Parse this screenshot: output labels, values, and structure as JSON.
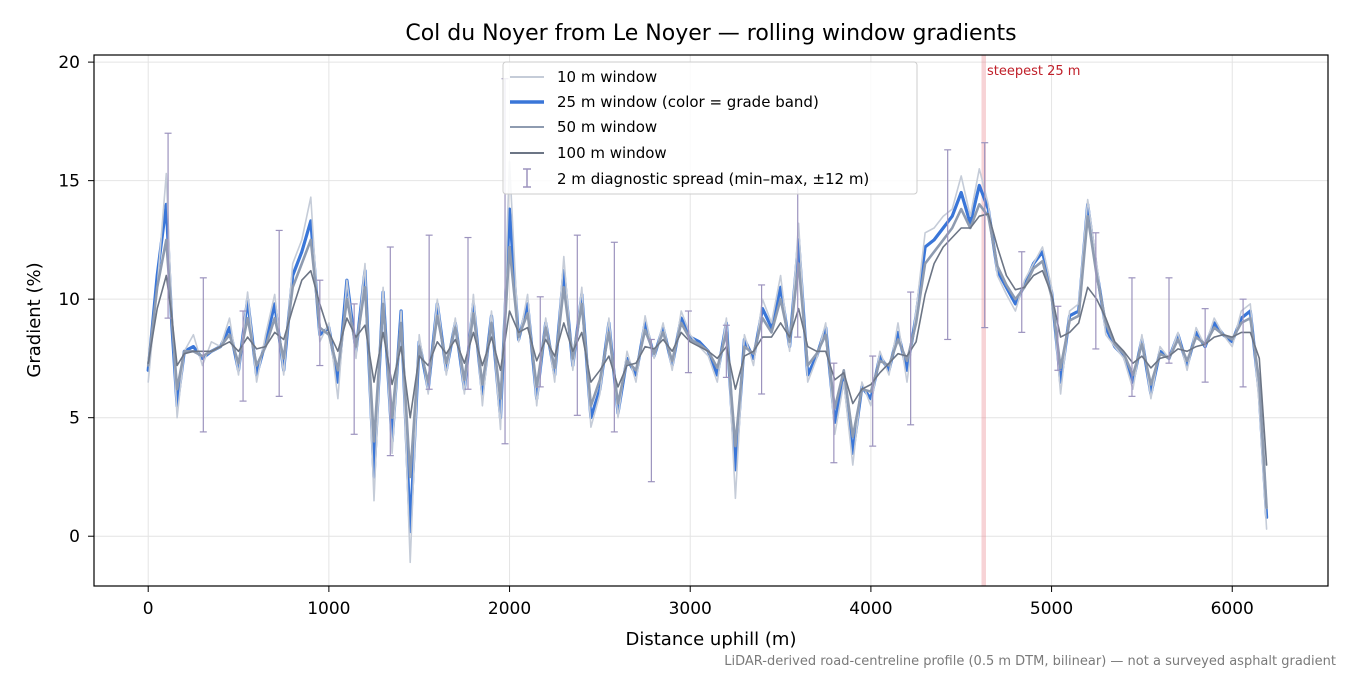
{
  "chart_data": {
    "type": "line",
    "title": "Col du Noyer from Le Noyer — rolling window gradients",
    "xlabel": "Distance uphill (m)",
    "ylabel": "Gradient (%)",
    "xlim": [
      -300,
      6530
    ],
    "ylim": [
      -2.1,
      20.3
    ],
    "x_ticks": [
      0,
      1000,
      2000,
      3000,
      4000,
      5000,
      6000
    ],
    "y_ticks": [
      0,
      5,
      10,
      15,
      20
    ],
    "grid": true,
    "legend_position": "top-center",
    "series": [
      {
        "name": "10 m window",
        "color": "#c5ccd8",
        "x": [
          0,
          50,
          100,
          130,
          160,
          200,
          250,
          300,
          350,
          400,
          450,
          500,
          550,
          600,
          650,
          700,
          750,
          800,
          850,
          900,
          950,
          1000,
          1050,
          1100,
          1150,
          1200,
          1250,
          1300,
          1350,
          1400,
          1450,
          1500,
          1550,
          1600,
          1650,
          1700,
          1750,
          1800,
          1850,
          1900,
          1950,
          2000,
          2050,
          2100,
          2150,
          2200,
          2250,
          2300,
          2350,
          2400,
          2450,
          2500,
          2550,
          2600,
          2650,
          2700,
          2750,
          2800,
          2850,
          2900,
          2950,
          3000,
          3050,
          3100,
          3150,
          3200,
          3250,
          3300,
          3350,
          3400,
          3450,
          3500,
          3550,
          3600,
          3650,
          3700,
          3750,
          3800,
          3850,
          3900,
          3950,
          4000,
          4050,
          4100,
          4150,
          4200,
          4250,
          4300,
          4350,
          4400,
          4450,
          4500,
          4550,
          4600,
          4650,
          4700,
          4750,
          4800,
          4850,
          4900,
          4950,
          5000,
          5050,
          5100,
          5150,
          5200,
          5250,
          5300,
          5350,
          5400,
          5450,
          5500,
          5550,
          5600,
          5650,
          5700,
          5750,
          5800,
          5850,
          5900,
          5950,
          6000,
          6050,
          6100,
          6150,
          6190
        ],
        "y": [
          6.5,
          10.5,
          15.3,
          9.5,
          5.0,
          7.8,
          8.5,
          7.2,
          8.2,
          8.0,
          9.2,
          6.8,
          10.3,
          6.5,
          8.5,
          10.2,
          6.8,
          11.5,
          12.5,
          14.3,
          8.2,
          9.0,
          5.8,
          10.8,
          7.5,
          11.5,
          1.5,
          10.5,
          3.5,
          9.5,
          -1.1,
          8.5,
          6.0,
          10.0,
          6.8,
          9.2,
          6.0,
          10.2,
          5.5,
          9.5,
          4.5,
          15.8,
          8.2,
          10.2,
          5.5,
          9.2,
          6.5,
          11.8,
          7.0,
          10.5,
          4.6,
          6.0,
          9.2,
          5.0,
          7.8,
          6.5,
          9.3,
          7.5,
          9.0,
          7.0,
          9.5,
          8.5,
          8.0,
          7.6,
          6.5,
          9.2,
          1.6,
          8.5,
          7.2,
          10.0,
          9.0,
          11.0,
          7.8,
          13.2,
          6.5,
          7.5,
          9.0,
          4.3,
          6.5,
          3.0,
          6.5,
          5.5,
          7.8,
          6.8,
          9.0,
          6.5,
          9.5,
          12.8,
          13.0,
          13.5,
          13.8,
          15.2,
          13.5,
          15.5,
          14.0,
          11.0,
          10.2,
          9.5,
          10.8,
          11.5,
          12.2,
          10.5,
          6.0,
          9.5,
          9.8,
          14.2,
          11.5,
          8.5,
          8.0,
          7.5,
          6.2,
          8.5,
          5.8,
          8.0,
          7.5,
          8.6,
          7.0,
          8.8,
          8.0,
          9.2,
          8.5,
          8.0,
          9.5,
          9.8,
          5.5,
          0.3
        ]
      },
      {
        "name": "25 m window (color = grade band)",
        "color": "#3a76d8",
        "x": [
          0,
          50,
          100,
          130,
          160,
          200,
          250,
          300,
          350,
          400,
          450,
          500,
          550,
          600,
          650,
          700,
          750,
          800,
          850,
          900,
          950,
          1000,
          1050,
          1100,
          1150,
          1200,
          1250,
          1300,
          1350,
          1400,
          1450,
          1500,
          1550,
          1600,
          1650,
          1700,
          1750,
          1800,
          1850,
          1900,
          1950,
          2000,
          2050,
          2100,
          2150,
          2200,
          2250,
          2300,
          2350,
          2400,
          2450,
          2500,
          2550,
          2600,
          2650,
          2700,
          2750,
          2800,
          2850,
          2900,
          2950,
          3000,
          3050,
          3100,
          3150,
          3200,
          3250,
          3300,
          3350,
          3400,
          3450,
          3500,
          3550,
          3600,
          3650,
          3700,
          3750,
          3800,
          3850,
          3900,
          3950,
          4000,
          4050,
          4100,
          4150,
          4200,
          4250,
          4300,
          4350,
          4400,
          4450,
          4500,
          4550,
          4600,
          4650,
          4700,
          4750,
          4800,
          4850,
          4900,
          4950,
          5000,
          5050,
          5100,
          5150,
          5200,
          5250,
          5300,
          5350,
          5400,
          5450,
          5500,
          5550,
          5600,
          5650,
          5700,
          5750,
          5800,
          5850,
          5900,
          5950,
          6000,
          6050,
          6100,
          6150,
          6190
        ],
        "y": [
          7.0,
          11.0,
          14.0,
          9.0,
          5.5,
          7.8,
          8.0,
          7.5,
          7.8,
          8.0,
          8.8,
          7.0,
          10.0,
          6.8,
          8.2,
          9.8,
          7.0,
          11.0,
          12.0,
          13.3,
          8.5,
          8.8,
          6.5,
          10.8,
          7.8,
          11.2,
          2.5,
          10.3,
          4.0,
          9.5,
          0.2,
          8.2,
          6.2,
          9.8,
          7.0,
          9.0,
          6.2,
          9.8,
          6.0,
          9.3,
          5.0,
          13.8,
          8.3,
          9.8,
          5.8,
          9.0,
          6.8,
          11.2,
          7.2,
          10.2,
          5.0,
          6.2,
          9.0,
          5.2,
          7.5,
          6.8,
          9.0,
          7.6,
          8.8,
          7.2,
          9.2,
          8.4,
          8.2,
          7.8,
          6.8,
          9.0,
          2.8,
          8.3,
          7.5,
          9.6,
          8.8,
          10.5,
          8.0,
          12.5,
          6.8,
          7.6,
          8.8,
          4.8,
          6.8,
          3.5,
          6.3,
          5.8,
          7.6,
          7.0,
          8.6,
          7.0,
          9.3,
          12.2,
          12.5,
          13.0,
          13.5,
          14.5,
          13.2,
          14.8,
          13.8,
          11.2,
          10.5,
          9.8,
          10.6,
          11.5,
          12.0,
          10.3,
          6.5,
          9.3,
          9.5,
          14.0,
          11.2,
          8.8,
          8.0,
          7.6,
          6.5,
          8.3,
          6.0,
          7.8,
          7.5,
          8.5,
          7.2,
          8.6,
          8.0,
          9.0,
          8.5,
          8.2,
          9.2,
          9.5,
          6.0,
          0.8
        ]
      },
      {
        "name": "50 m window",
        "color": "#8e9bb0",
        "x": [
          0,
          50,
          100,
          130,
          160,
          200,
          250,
          300,
          350,
          400,
          450,
          500,
          550,
          600,
          650,
          700,
          750,
          800,
          850,
          900,
          950,
          1000,
          1050,
          1100,
          1150,
          1200,
          1250,
          1300,
          1350,
          1400,
          1450,
          1500,
          1550,
          1600,
          1650,
          1700,
          1750,
          1800,
          1850,
          1900,
          1950,
          2000,
          2050,
          2100,
          2150,
          2200,
          2250,
          2300,
          2350,
          2400,
          2450,
          2500,
          2550,
          2600,
          2650,
          2700,
          2750,
          2800,
          2850,
          2900,
          2950,
          3000,
          3050,
          3100,
          3150,
          3200,
          3250,
          3300,
          3350,
          3400,
          3450,
          3500,
          3550,
          3600,
          3650,
          3700,
          3750,
          3800,
          3850,
          3900,
          3950,
          4000,
          4050,
          4100,
          4150,
          4200,
          4250,
          4300,
          4350,
          4400,
          4450,
          4500,
          4550,
          4600,
          4650,
          4700,
          4750,
          4800,
          4850,
          4900,
          4950,
          5000,
          5050,
          5100,
          5150,
          5200,
          5250,
          5300,
          5350,
          5400,
          5450,
          5500,
          5550,
          5600,
          5650,
          5700,
          5750,
          5800,
          5850,
          5900,
          5950,
          6000,
          6050,
          6100,
          6150,
          6190
        ],
        "y": [
          7.2,
          10.5,
          12.5,
          9.2,
          6.2,
          7.8,
          7.8,
          7.6,
          7.8,
          8.0,
          8.5,
          7.3,
          9.2,
          7.2,
          8.0,
          9.2,
          7.5,
          10.5,
          11.5,
          12.5,
          8.8,
          8.5,
          7.0,
          10.0,
          8.0,
          10.5,
          4.0,
          9.8,
          5.0,
          9.0,
          2.5,
          8.0,
          6.5,
          9.3,
          7.3,
          8.8,
          6.6,
          9.4,
          6.4,
          9.0,
          5.8,
          12.2,
          8.4,
          9.4,
          6.3,
          8.8,
          7.1,
          10.5,
          7.5,
          9.8,
          5.5,
          6.6,
          8.6,
          5.6,
          7.4,
          7.0,
          8.7,
          7.7,
          8.6,
          7.4,
          9.0,
          8.3,
          8.1,
          7.8,
          7.1,
          8.6,
          3.8,
          8.0,
          7.7,
          9.2,
          8.6,
          10.0,
          8.2,
          11.5,
          7.2,
          7.7,
          8.5,
          5.4,
          7.0,
          4.2,
          6.2,
          6.1,
          7.4,
          7.2,
          8.3,
          7.4,
          9.0,
          11.5,
          12.0,
          12.5,
          13.0,
          13.8,
          13.0,
          14.0,
          13.5,
          11.4,
          10.6,
          10.0,
          10.5,
          11.3,
          11.6,
          10.1,
          7.1,
          9.1,
          9.3,
          13.5,
          11.0,
          9.0,
          8.1,
          7.7,
          6.8,
          8.1,
          6.4,
          7.7,
          7.5,
          8.3,
          7.4,
          8.4,
          8.1,
          8.8,
          8.5,
          8.3,
          9.0,
          9.2,
          6.5,
          1.2
        ]
      },
      {
        "name": "100 m window",
        "color": "#6c7585",
        "x": [
          0,
          50,
          100,
          130,
          160,
          200,
          250,
          300,
          350,
          400,
          450,
          500,
          550,
          600,
          650,
          700,
          750,
          800,
          850,
          900,
          950,
          1000,
          1050,
          1100,
          1150,
          1200,
          1250,
          1300,
          1350,
          1400,
          1450,
          1500,
          1550,
          1600,
          1650,
          1700,
          1750,
          1800,
          1850,
          1900,
          1950,
          2000,
          2050,
          2100,
          2150,
          2200,
          2250,
          2300,
          2350,
          2400,
          2450,
          2500,
          2550,
          2600,
          2650,
          2700,
          2750,
          2800,
          2850,
          2900,
          2950,
          3000,
          3050,
          3100,
          3150,
          3200,
          3250,
          3300,
          3350,
          3400,
          3450,
          3500,
          3550,
          3600,
          3650,
          3700,
          3750,
          3800,
          3850,
          3900,
          3950,
          4000,
          4050,
          4100,
          4150,
          4200,
          4250,
          4300,
          4350,
          4400,
          4450,
          4500,
          4550,
          4600,
          4650,
          4700,
          4750,
          4800,
          4850,
          4900,
          4950,
          5000,
          5050,
          5100,
          5150,
          5200,
          5250,
          5300,
          5350,
          5400,
          5450,
          5500,
          5550,
          5600,
          5650,
          5700,
          5750,
          5800,
          5850,
          5900,
          5950,
          6000,
          6050,
          6100,
          6150,
          6190
        ],
        "y": [
          7.3,
          9.6,
          11.0,
          9.3,
          7.2,
          7.7,
          7.8,
          7.8,
          7.8,
          8.0,
          8.2,
          7.8,
          8.4,
          7.9,
          8.0,
          8.6,
          8.3,
          9.6,
          10.8,
          11.2,
          9.8,
          8.6,
          7.8,
          9.2,
          8.4,
          8.9,
          6.5,
          8.6,
          6.4,
          8.0,
          5.0,
          7.6,
          7.2,
          8.2,
          7.7,
          8.3,
          7.3,
          8.6,
          7.2,
          8.4,
          7.0,
          9.5,
          8.6,
          8.8,
          7.4,
          8.3,
          7.6,
          9.0,
          7.8,
          8.6,
          6.5,
          7.0,
          7.6,
          6.3,
          7.2,
          7.3,
          8.0,
          7.9,
          8.3,
          7.8,
          8.6,
          8.2,
          8.0,
          7.8,
          7.5,
          8.0,
          6.2,
          7.6,
          7.8,
          8.4,
          8.4,
          9.0,
          8.4,
          9.6,
          8.0,
          7.8,
          7.8,
          6.6,
          6.9,
          5.6,
          6.2,
          6.4,
          6.9,
          7.3,
          7.7,
          7.6,
          8.2,
          10.2,
          11.5,
          12.2,
          12.6,
          13.0,
          13.0,
          13.5,
          13.6,
          12.2,
          11.0,
          10.4,
          10.5,
          11.0,
          11.2,
          10.2,
          8.4,
          8.6,
          9.0,
          10.5,
          10.0,
          9.2,
          8.2,
          7.8,
          7.3,
          7.6,
          7.1,
          7.5,
          7.6,
          7.9,
          7.8,
          8.0,
          8.1,
          8.4,
          8.5,
          8.4,
          8.6,
          8.6,
          7.5,
          3.0
        ]
      }
    ],
    "error_bars": {
      "name": "2 m diagnostic spread (min–max, ±12 m)",
      "color": "#9c93be",
      "points": [
        {
          "x": 110,
          "low": 9.2,
          "high": 17.0
        },
        {
          "x": 305,
          "low": 4.4,
          "high": 10.9
        },
        {
          "x": 525,
          "low": 5.7,
          "high": 9.5
        },
        {
          "x": 725,
          "low": 5.9,
          "high": 12.9
        },
        {
          "x": 950,
          "low": 7.2,
          "high": 10.8
        },
        {
          "x": 1140,
          "low": 4.3,
          "high": 9.8
        },
        {
          "x": 1340,
          "low": 3.4,
          "high": 12.2
        },
        {
          "x": 1555,
          "low": 6.2,
          "high": 12.7
        },
        {
          "x": 1770,
          "low": 6.2,
          "high": 12.6
        },
        {
          "x": 1975,
          "low": 3.9,
          "high": 19.3
        },
        {
          "x": 2170,
          "low": 6.3,
          "high": 10.1
        },
        {
          "x": 2375,
          "low": 5.1,
          "high": 12.7
        },
        {
          "x": 2580,
          "low": 4.4,
          "high": 12.4
        },
        {
          "x": 2785,
          "low": 2.3,
          "high": 8.3
        },
        {
          "x": 2990,
          "low": 6.9,
          "high": 9.5
        },
        {
          "x": 3200,
          "low": 6.7,
          "high": 8.9
        },
        {
          "x": 3395,
          "low": 6.0,
          "high": 10.6
        },
        {
          "x": 3595,
          "low": 8.4,
          "high": 14.9
        },
        {
          "x": 3795,
          "low": 3.1,
          "high": 7.3
        },
        {
          "x": 4010,
          "low": 3.8,
          "high": 7.6
        },
        {
          "x": 4220,
          "low": 4.7,
          "high": 10.3
        },
        {
          "x": 4425,
          "low": 8.3,
          "high": 16.3
        },
        {
          "x": 4630,
          "low": 8.8,
          "high": 16.6
        },
        {
          "x": 4835,
          "low": 8.6,
          "high": 12.0
        },
        {
          "x": 5035,
          "low": 7.0,
          "high": 9.7
        },
        {
          "x": 5245,
          "low": 7.9,
          "high": 12.8
        },
        {
          "x": 5445,
          "low": 5.9,
          "high": 10.9
        },
        {
          "x": 5650,
          "low": 7.3,
          "high": 10.9
        },
        {
          "x": 5850,
          "low": 6.5,
          "high": 9.6
        },
        {
          "x": 6060,
          "low": 6.3,
          "high": 10.0
        }
      ]
    },
    "highlight": {
      "label": "steepest 25 m",
      "x_from": 4612,
      "x_to": 4637,
      "color": "#e9808a"
    }
  },
  "footer_note": "LiDAR-derived road-centreline profile (0.5 m DTM, bilinear) — not a surveyed asphalt gradient"
}
